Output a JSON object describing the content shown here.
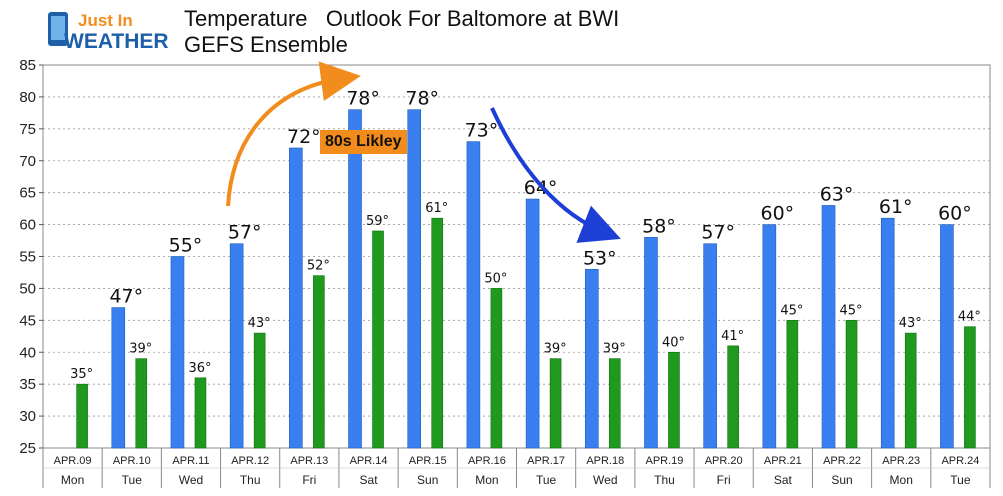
{
  "brand": {
    "line1": "Just In",
    "line2": "WEATHER",
    "colors": {
      "blue": "#2a78c8",
      "orange": "#f28c1c"
    }
  },
  "header": {
    "title": "Temperature   Outlook For Baltomore at BWI",
    "subtitle": "GEFS Ensemble"
  },
  "callout": {
    "text": "80s Likley",
    "color": "#f28c1c"
  },
  "chart_data": {
    "type": "bar",
    "categories": [
      "APR.09",
      "APR.10",
      "APR.11",
      "APR.12",
      "APR.13",
      "APR.14",
      "APR.15",
      "APR.16",
      "APR.17",
      "APR.18",
      "APR.19",
      "APR.20",
      "APR.21",
      "APR.22",
      "APR.23",
      "APR.24"
    ],
    "weekdays": [
      "Mon",
      "Tue",
      "Wed",
      "Thu",
      "Fri",
      "Sat",
      "Sun",
      "Mon",
      "Tue",
      "Wed",
      "Thu",
      "Fri",
      "Sat",
      "Sun",
      "Mon",
      "Tue"
    ],
    "series": [
      {
        "values": [
          null,
          47,
          55,
          57,
          72,
          78,
          78,
          73,
          64,
          53,
          58,
          57,
          60,
          63,
          61,
          60
        ],
        "color": "#3a7ff0"
      },
      {
        "values": [
          35,
          39,
          36,
          43,
          52,
          59,
          61,
          50,
          39,
          39,
          40,
          41,
          45,
          45,
          43,
          44
        ],
        "color": "#1f9a1f"
      }
    ],
    "high_labels": [
      "",
      "47°",
      "55°",
      "57°",
      "72°",
      "78°",
      "78°",
      "73°",
      "64°",
      "53°",
      "58°",
      "57°",
      "60°",
      "63°",
      "61°",
      "60°"
    ],
    "low_labels": [
      "35°",
      "39°",
      "36°",
      "43°",
      "52°",
      "59°",
      "61°",
      "50°",
      "39°",
      "39°",
      "40°",
      "41°",
      "45°",
      "45°",
      "43°",
      "44°"
    ],
    "ylim": [
      25,
      85
    ],
    "yticks": [
      "25",
      "30",
      "35",
      "40",
      "45",
      "50",
      "55",
      "60",
      "65",
      "70",
      "75",
      "80",
      "85"
    ],
    "grid": true,
    "legend": "none"
  }
}
